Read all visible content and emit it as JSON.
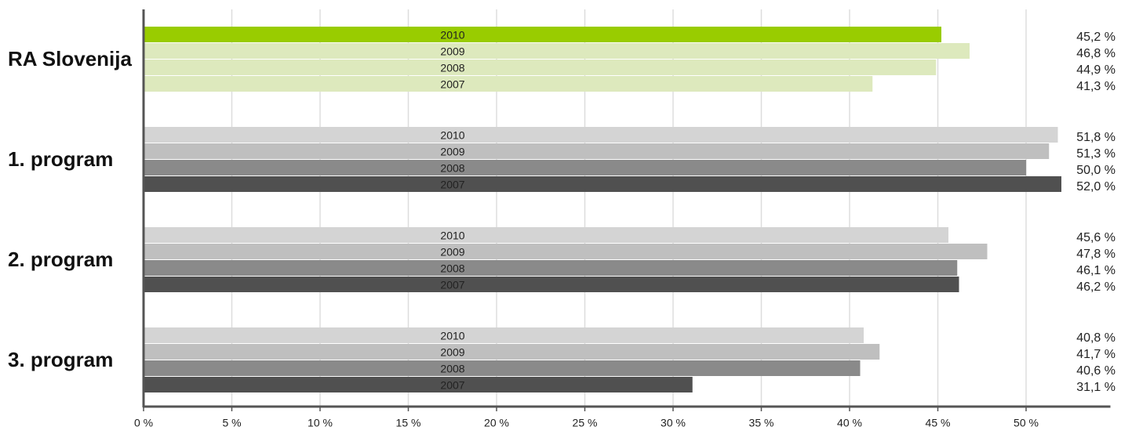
{
  "chart_data": {
    "type": "hbar-grouped",
    "categories": [
      "RA Slovenija",
      "1. program",
      "2. program",
      "3. program"
    ],
    "series": [
      {
        "name": "2010",
        "colors": [
          "#99cc00",
          "#d4d4d4",
          "#d4d4d4",
          "#d4d4d4"
        ],
        "values": [
          45.2,
          51.8,
          45.6,
          40.8
        ],
        "value_labels": [
          "45,2 %",
          "51,8 %",
          "45,6 %",
          "40,8 %"
        ]
      },
      {
        "name": "2009",
        "colors": [
          "#dde9bd",
          "#bfbfbf",
          "#bfbfbf",
          "#bfbfbf"
        ],
        "values": [
          46.8,
          51.3,
          47.8,
          41.7
        ],
        "value_labels": [
          "46,8 %",
          "51,3 %",
          "47,8 %",
          "41,7 %"
        ]
      },
      {
        "name": "2008",
        "colors": [
          "#dde9bd",
          "#8a8a8a",
          "#8a8a8a",
          "#8a8a8a"
        ],
        "values": [
          44.9,
          50.0,
          46.1,
          40.6
        ],
        "value_labels": [
          "44,9 %",
          "50,0 %",
          "46,1 %",
          "40,6 %"
        ]
      },
      {
        "name": "2007",
        "colors": [
          "#dde9bd",
          "#505050",
          "#505050",
          "#505050"
        ],
        "values": [
          41.3,
          52.0,
          46.2,
          31.1
        ],
        "value_labels": [
          "41,3 %",
          "52,0 %",
          "46,2 %",
          "31,1 %"
        ]
      }
    ],
    "xlim": [
      0,
      55
    ],
    "xticks": [
      {
        "value": 0,
        "label": "0 %"
      },
      {
        "value": 5,
        "label": "5 %"
      },
      {
        "value": 10,
        "label": "10 %"
      },
      {
        "value": 15,
        "label": "15 %"
      },
      {
        "value": 20,
        "label": "20 %"
      },
      {
        "value": 25,
        "label": "25 %"
      },
      {
        "value": 30,
        "label": "30 %"
      },
      {
        "value": 35,
        "label": "35 %"
      },
      {
        "value": 40,
        "label": "40 %"
      },
      {
        "value": 45,
        "label": "45 %"
      },
      {
        "value": 50,
        "label": "50 %"
      }
    ],
    "grid": true
  }
}
